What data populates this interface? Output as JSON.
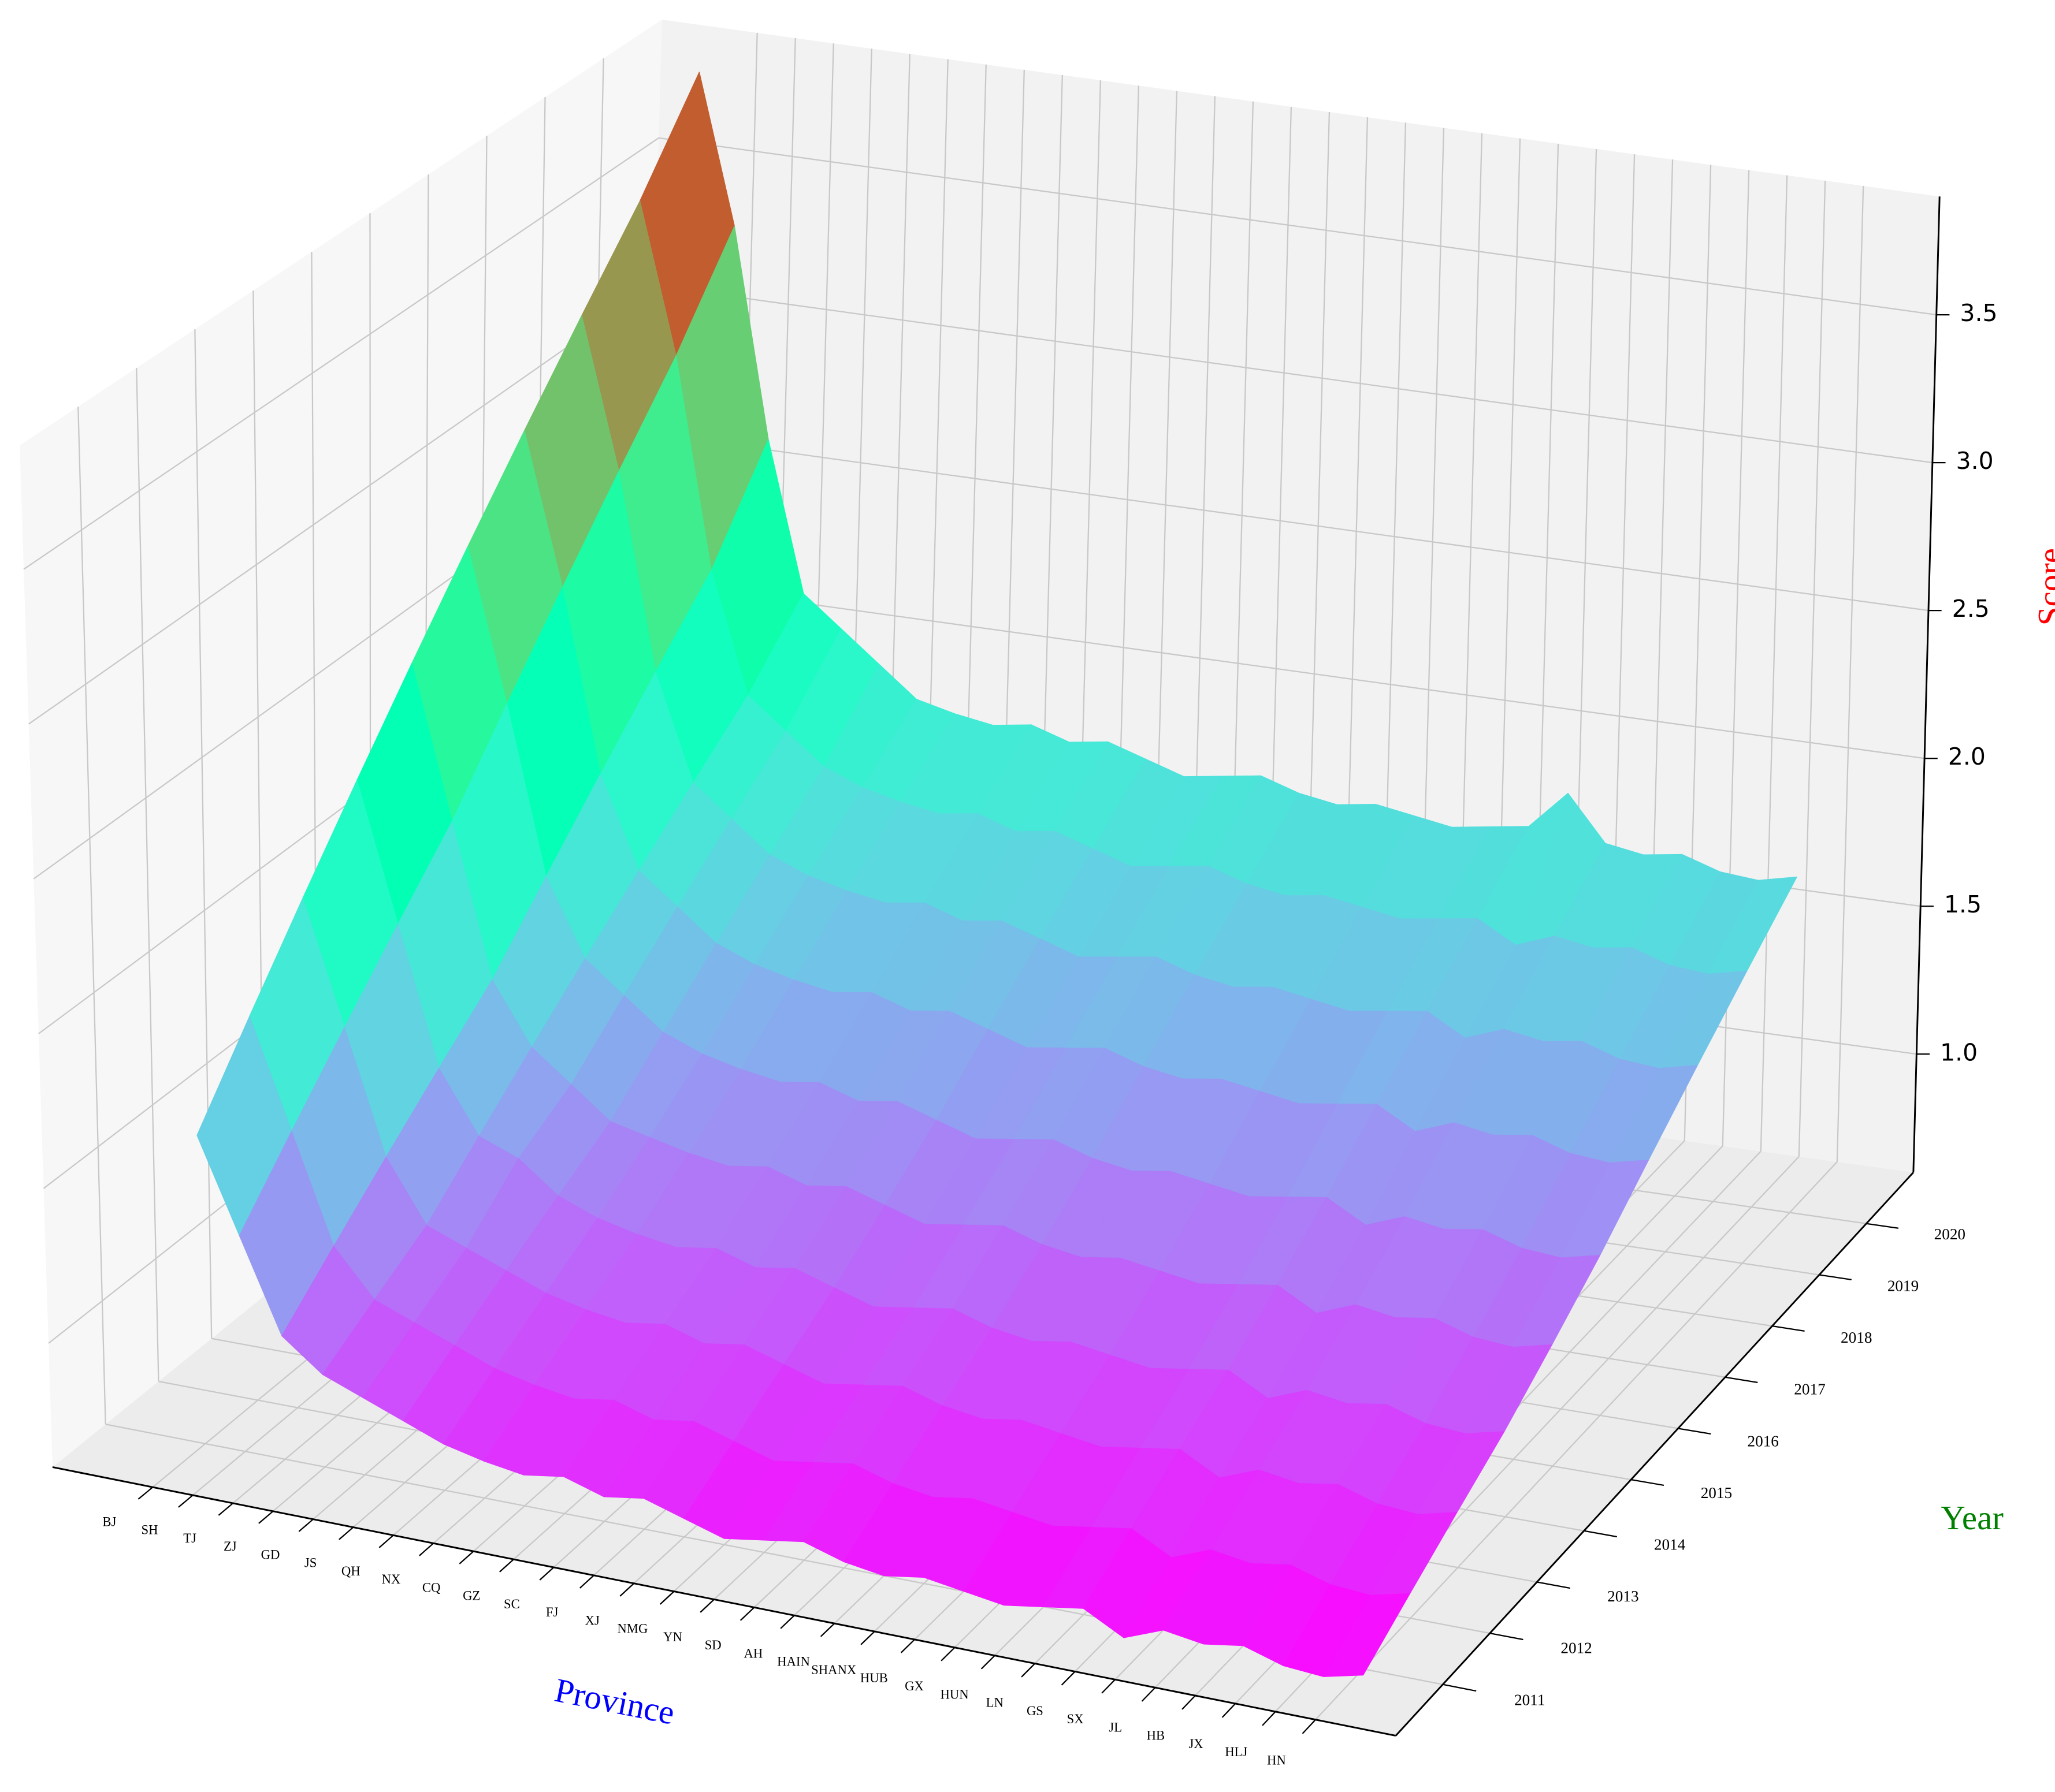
{
  "chart_data": {
    "type": "surface",
    "xlabel": "Province",
    "ylabel": "Year",
    "zlabel": "Score",
    "xlabel_color": "#0000ff",
    "ylabel_color": "#008000",
    "zlabel_color": "#ff0000",
    "colormap": "rainbow",
    "categories": [
      "BJ",
      "SH",
      "TJ",
      "ZJ",
      "GD",
      "JS",
      "QH",
      "NX",
      "CQ",
      "GZ",
      "SC",
      "FJ",
      "XJ",
      "NMG",
      "YN",
      "SD",
      "AH",
      "HAIN",
      "SHANX",
      "HUB",
      "GX",
      "HUN",
      "LN",
      "GS",
      "SX",
      "JL",
      "HB",
      "JX",
      "HLJ",
      "HN"
    ],
    "series": [
      {
        "name": "2011",
        "values": [
          1.6,
          1.3,
          1.0,
          0.9,
          0.85,
          0.8,
          0.75,
          0.72,
          0.7,
          0.72,
          0.68,
          0.7,
          0.66,
          0.62,
          0.64,
          0.66,
          0.62,
          0.6,
          0.62,
          0.6,
          0.58,
          0.6,
          0.62,
          0.55,
          0.6,
          0.58,
          0.6,
          0.56,
          0.55,
          0.58
        ]
      },
      {
        "name": "2012",
        "values": [
          1.85,
          1.5,
          1.15,
          1.0,
          0.95,
          0.9,
          0.85,
          0.82,
          0.8,
          0.82,
          0.78,
          0.8,
          0.76,
          0.72,
          0.74,
          0.76,
          0.72,
          0.7,
          0.72,
          0.7,
          0.68,
          0.7,
          0.72,
          0.65,
          0.7,
          0.68,
          0.7,
          0.66,
          0.65,
          0.68
        ]
      },
      {
        "name": "2013",
        "values": [
          2.1,
          1.7,
          1.3,
          1.1,
          1.05,
          1.0,
          0.95,
          0.92,
          0.9,
          0.92,
          0.88,
          0.9,
          0.86,
          0.82,
          0.84,
          0.86,
          0.82,
          0.8,
          0.82,
          0.8,
          0.78,
          0.8,
          0.82,
          0.75,
          0.8,
          0.78,
          0.8,
          0.76,
          0.75,
          0.78
        ]
      },
      {
        "name": "2014",
        "values": [
          2.35,
          1.9,
          1.45,
          1.25,
          1.2,
          1.1,
          1.05,
          1.02,
          1.0,
          1.02,
          0.98,
          1.0,
          0.96,
          0.92,
          0.94,
          0.96,
          0.92,
          0.9,
          0.92,
          0.9,
          0.88,
          0.9,
          0.92,
          0.85,
          0.9,
          0.88,
          0.9,
          0.86,
          0.85,
          0.88
        ]
      },
      {
        "name": "2015",
        "values": [
          2.6,
          2.1,
          1.6,
          1.4,
          1.3,
          1.2,
          1.17,
          1.14,
          1.12,
          1.14,
          1.1,
          1.12,
          1.08,
          1.04,
          1.06,
          1.08,
          1.04,
          1.02,
          1.04,
          1.02,
          1.0,
          1.02,
          1.04,
          0.97,
          1.02,
          1.0,
          1.02,
          0.98,
          0.97,
          1.0
        ]
      },
      {
        "name": "2016",
        "values": [
          2.85,
          2.35,
          1.8,
          1.55,
          1.45,
          1.35,
          1.3,
          1.27,
          1.25,
          1.27,
          1.23,
          1.25,
          1.21,
          1.17,
          1.19,
          1.21,
          1.17,
          1.15,
          1.17,
          1.15,
          1.13,
          1.15,
          1.17,
          1.1,
          1.15,
          1.13,
          1.15,
          1.11,
          1.1,
          1.13
        ]
      },
      {
        "name": "2017",
        "values": [
          3.1,
          2.6,
          2.0,
          1.7,
          1.6,
          1.5,
          1.45,
          1.42,
          1.4,
          1.42,
          1.38,
          1.4,
          1.36,
          1.32,
          1.34,
          1.36,
          1.32,
          1.3,
          1.32,
          1.3,
          1.28,
          1.3,
          1.32,
          1.25,
          1.3,
          1.28,
          1.3,
          1.26,
          1.25,
          1.28
        ]
      },
      {
        "name": "2018",
        "values": [
          3.35,
          2.85,
          2.2,
          1.85,
          1.75,
          1.65,
          1.6,
          1.57,
          1.55,
          1.57,
          1.53,
          1.55,
          1.51,
          1.47,
          1.49,
          1.51,
          1.47,
          1.45,
          1.47,
          1.45,
          1.43,
          1.45,
          1.47,
          1.4,
          1.45,
          1.43,
          1.45,
          1.41,
          1.4,
          1.43
        ]
      },
      {
        "name": "2019",
        "values": [
          3.6,
          3.1,
          2.4,
          2.0,
          1.9,
          1.8,
          1.75,
          1.72,
          1.7,
          1.72,
          1.68,
          1.7,
          1.66,
          1.62,
          1.64,
          1.66,
          1.62,
          1.6,
          1.62,
          1.6,
          1.58,
          1.6,
          1.62,
          1.55,
          1.6,
          1.58,
          1.6,
          1.56,
          1.55,
          1.58
        ]
      },
      {
        "name": "2020",
        "values": [
          3.9,
          3.4,
          2.7,
          2.2,
          2.1,
          2.0,
          1.9,
          1.87,
          1.85,
          1.87,
          1.83,
          1.85,
          1.81,
          1.77,
          1.79,
          1.81,
          1.77,
          1.75,
          1.77,
          1.75,
          1.73,
          1.75,
          1.77,
          1.9,
          1.75,
          1.73,
          1.75,
          1.71,
          1.7,
          1.73
        ]
      }
    ],
    "zlim": [
      0.6,
      3.9
    ],
    "zticks": [
      {
        "value": 1,
        "label": "1.0"
      },
      1.5,
      {
        "value": 2,
        "label": "2.0"
      },
      2.5,
      {
        "value": 3,
        "label": "3.0"
      },
      3.5
    ],
    "grid": true
  }
}
